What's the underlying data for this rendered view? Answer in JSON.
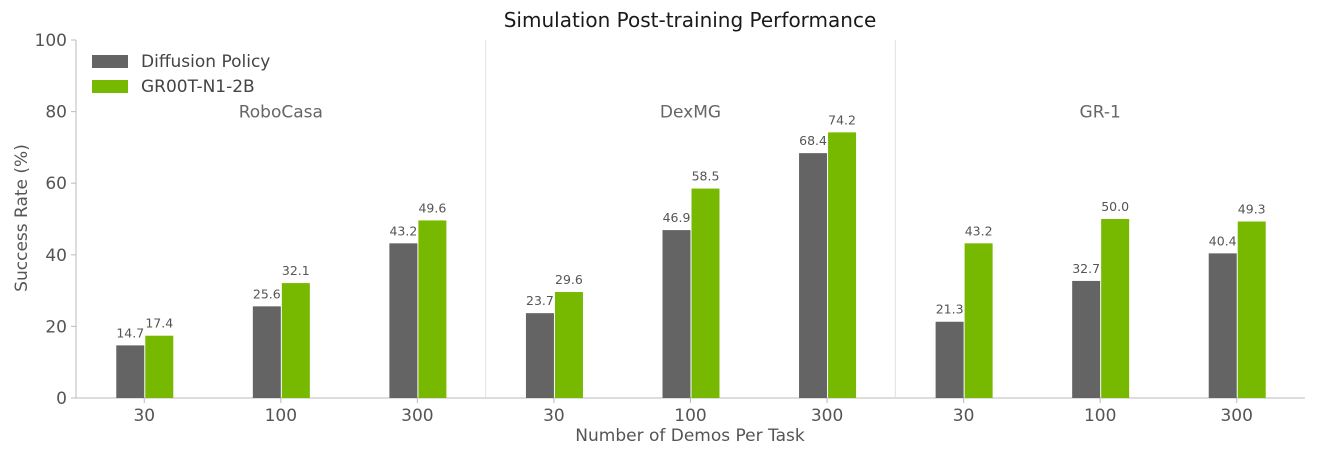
{
  "chart_data": {
    "type": "bar",
    "title": "Simulation Post-training Performance",
    "xlabel": "Number of Demos Per Task",
    "ylabel": "Success Rate (%)",
    "ylim": [
      0,
      100
    ],
    "yticks": [
      "0",
      "20",
      "40",
      "60",
      "80",
      "100"
    ],
    "groups": [
      "RoboCasa",
      "DexMG",
      "GR-1"
    ],
    "categories": [
      "30",
      "100",
      "300",
      "30",
      "100",
      "300",
      "30",
      "100",
      "300"
    ],
    "series": [
      {
        "name": "Diffusion Policy",
        "color": "#646464",
        "values": [
          14.7,
          25.6,
          43.2,
          23.7,
          46.9,
          68.4,
          21.3,
          32.7,
          40.4
        ],
        "labels": [
          "14.7",
          "25.6",
          "43.2",
          "23.7",
          "46.9",
          "68.4",
          "21.3",
          "32.7",
          "40.4"
        ]
      },
      {
        "name": "GR00T-N1-2B",
        "color": "#76b900",
        "values": [
          17.4,
          32.1,
          49.6,
          29.6,
          58.5,
          74.2,
          43.2,
          50.0,
          49.3
        ],
        "labels": [
          "17.4",
          "32.1",
          "49.6",
          "29.6",
          "58.5",
          "74.2",
          "43.2",
          "50.0",
          "49.3"
        ]
      }
    ],
    "legend": "top-left",
    "grid": false
  }
}
